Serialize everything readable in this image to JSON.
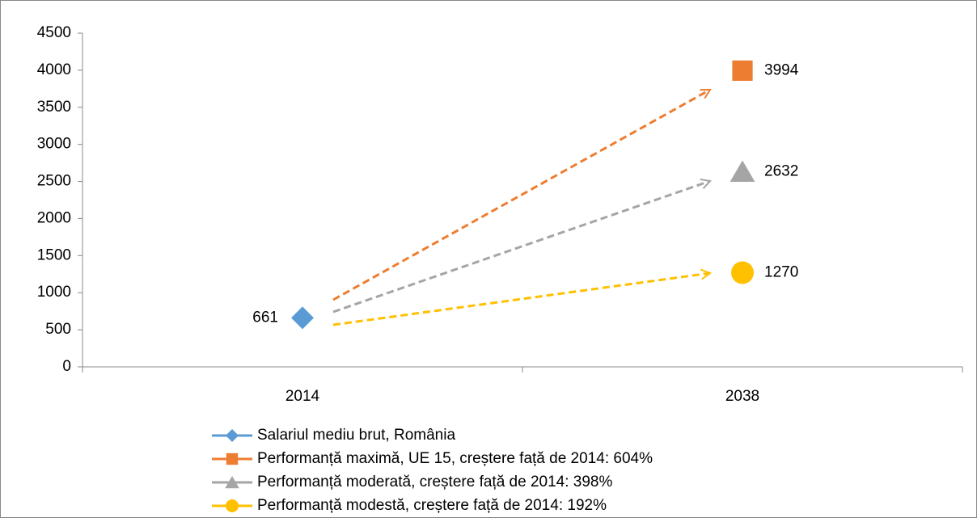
{
  "chart_data": {
    "type": "line",
    "categories": [
      "2014",
      "2038"
    ],
    "series": [
      {
        "name": "Salariul mediu brut, România",
        "color": "#5b9bd5",
        "marker": "diamond",
        "values": [
          661,
          null
        ]
      },
      {
        "name": "Performanță maximă, UE 15, creștere față de 2014: 604%",
        "color": "#ed7d31",
        "marker": "square",
        "values": [
          null,
          3994
        ]
      },
      {
        "name": "Performanță moderată, creștere față de 2014: 398%",
        "color": "#a5a5a5",
        "marker": "triangle",
        "values": [
          null,
          2632
        ]
      },
      {
        "name": "Performanță modestă, creștere față de 2014: 192%",
        "color": "#ffc000",
        "marker": "circle",
        "values": [
          null,
          1270
        ]
      }
    ],
    "ylim": [
      0,
      4500
    ],
    "yticks": [
      0,
      500,
      1000,
      1500,
      2000,
      2500,
      3000,
      3500,
      4000,
      4500
    ],
    "grid": false,
    "legend": "bottom",
    "data_labels": true
  }
}
